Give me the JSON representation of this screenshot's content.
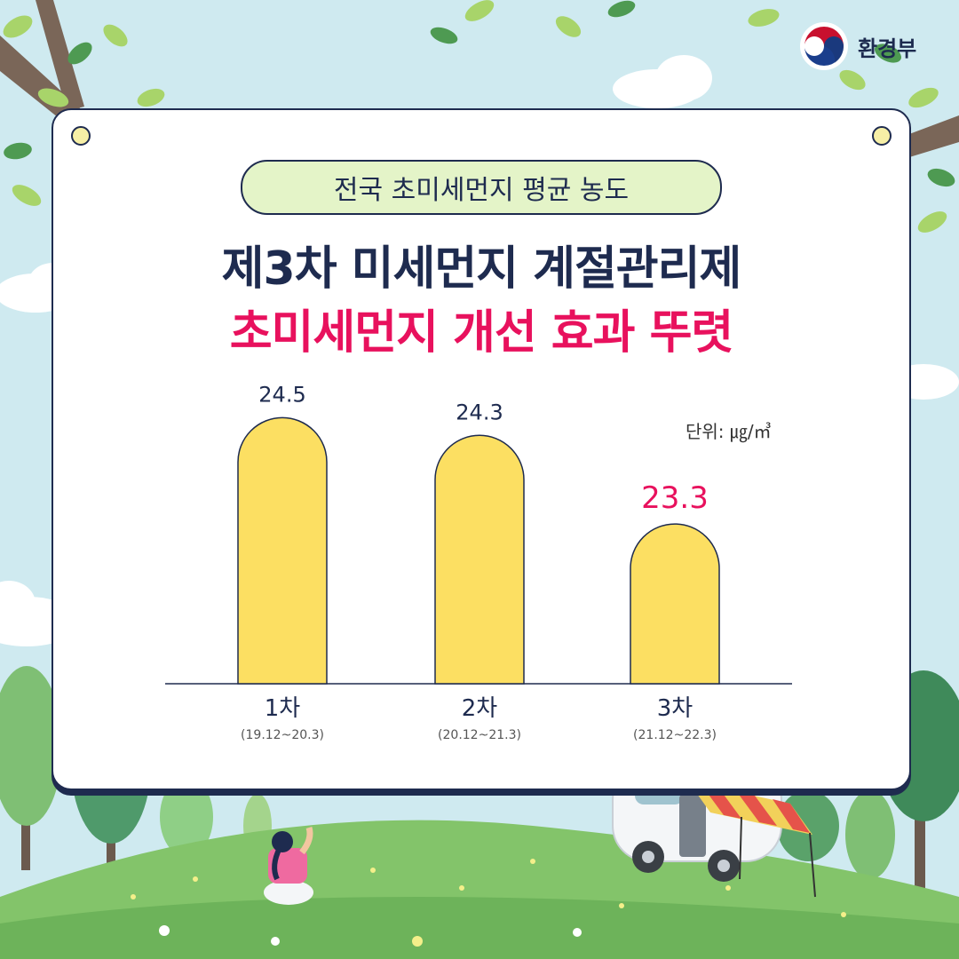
{
  "brand": {
    "name": "환경부"
  },
  "card": {
    "badge": "전국 초미세먼지 평균 농도",
    "headline_line1": "제3차 미세먼지 계절관리제",
    "headline_line2": "초미세먼지 개선 효과 뚜렷",
    "unit": "단위: ㎍/㎥"
  },
  "colors": {
    "navy": "#1e2b4f",
    "accent": "#e8115d",
    "bar": "#fcdf62",
    "badge_bg": "#e4f4c8"
  },
  "chart_data": {
    "type": "bar",
    "categories": [
      "1차",
      "2차",
      "3차"
    ],
    "sublabels": [
      "(19.12~20.3)",
      "(20.12~21.3)",
      "(21.12~22.3)"
    ],
    "values": [
      24.5,
      24.3,
      23.3
    ],
    "value_labels": [
      "24.5",
      "24.3",
      "23.3"
    ],
    "highlight_index": 2,
    "ylabel": "단위: ㎍/㎥",
    "ylim": [
      0,
      26
    ],
    "grid": false
  }
}
